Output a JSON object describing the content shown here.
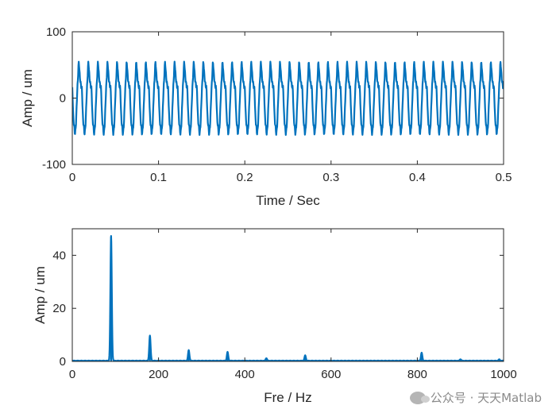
{
  "chart_data": [
    {
      "type": "line",
      "title": "",
      "xlabel": "Time / Sec",
      "ylabel": "Amp / um",
      "xlim": [
        0,
        0.5
      ],
      "ylim": [
        -100,
        100
      ],
      "xticks": [
        "0",
        "0.1",
        "0.2",
        "0.3",
        "0.4",
        "0.5"
      ],
      "yticks": [
        "-100",
        "0",
        "100"
      ],
      "grid": false,
      "series": [
        {
          "color": "#0072BD",
          "description": "periodic vibration signal, dominant 90 Hz with harmonics at 180/270/360/540/810 Hz",
          "components": [
            {
              "freq_hz": 90,
              "amp": 47
            },
            {
              "freq_hz": 180,
              "amp": 9.5
            },
            {
              "freq_hz": 270,
              "amp": 4
            },
            {
              "freq_hz": 360,
              "amp": 3.3
            },
            {
              "freq_hz": 450,
              "amp": 1
            },
            {
              "freq_hz": 540,
              "amp": 2
            },
            {
              "freq_hz": 810,
              "amp": 3
            }
          ],
          "amplitude_range": [
            -62,
            66
          ]
        }
      ]
    },
    {
      "type": "line",
      "title": "",
      "xlabel": "Fre / Hz",
      "ylabel": "Amp / um",
      "xlim": [
        0,
        1000
      ],
      "ylim": [
        0,
        50
      ],
      "xticks": [
        "0",
        "200",
        "400",
        "600",
        "800",
        "1000"
      ],
      "yticks": [
        "0",
        "20",
        "40"
      ],
      "grid": false,
      "series": [
        {
          "color": "#0072BD",
          "peaks": [
            {
              "x": 90,
              "y": 47
            },
            {
              "x": 180,
              "y": 9.5
            },
            {
              "x": 270,
              "y": 4
            },
            {
              "x": 360,
              "y": 3.3
            },
            {
              "x": 450,
              "y": 1
            },
            {
              "x": 540,
              "y": 2
            },
            {
              "x": 810,
              "y": 3
            },
            {
              "x": 900,
              "y": 0.6
            },
            {
              "x": 990,
              "y": 0.5
            }
          ],
          "noise_floor": 0.3
        }
      ]
    }
  ],
  "watermark": {
    "text": "公众号 · 天天Matlab"
  }
}
